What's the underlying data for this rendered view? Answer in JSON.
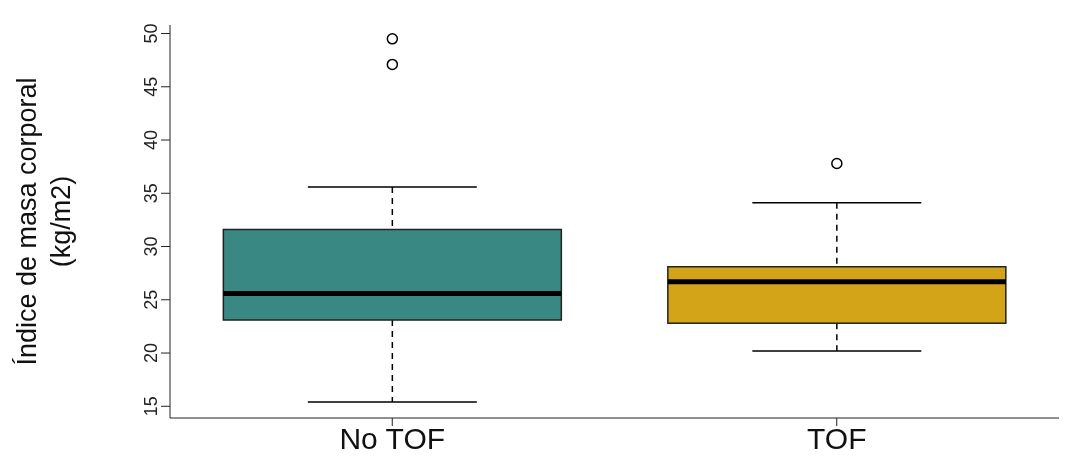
{
  "chart_data": {
    "type": "box",
    "ylabel": "Índice de masa corporal\n(kg/m2)",
    "categories": [
      "No TOF",
      "TOF"
    ],
    "boxes": [
      {
        "low": 15.4,
        "q1": 23.1,
        "median": 25.6,
        "q3": 31.6,
        "high": 35.6,
        "outliers": [
          49.5,
          47.1
        ]
      },
      {
        "low": 20.2,
        "q1": 22.8,
        "median": 26.7,
        "q3": 28.1,
        "high": 34.1,
        "outliers": [
          37.8
        ]
      }
    ],
    "colors": [
      "#3a8884",
      "#d4a418"
    ],
    "ylim": [
      13.9,
      50.8
    ],
    "yticks": [
      15,
      20,
      25,
      30,
      35,
      40,
      45,
      50
    ],
    "grid": false,
    "legend": false
  }
}
